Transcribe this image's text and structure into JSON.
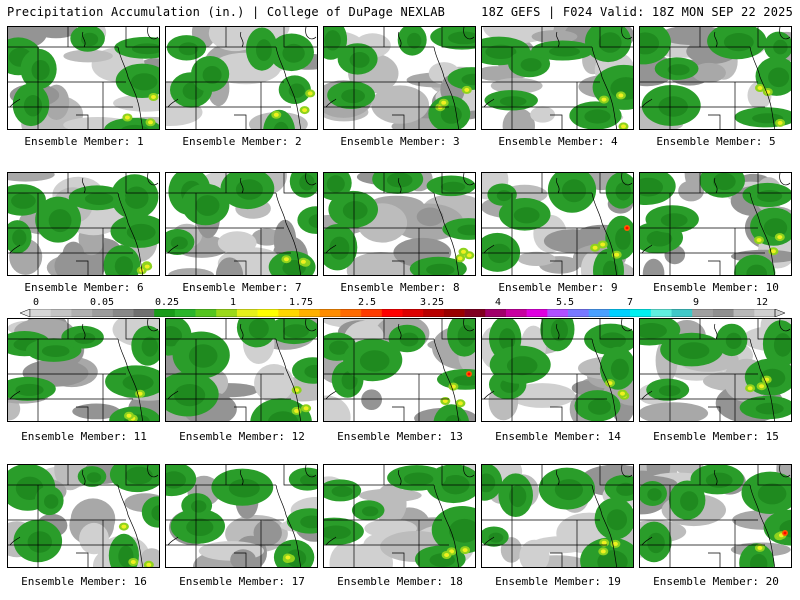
{
  "header": {
    "title_left": "Precipitation Accumulation (in.) | College of DuPage NEXLAB",
    "title_right": "18Z GEFS | F024 Valid: 18Z MON SEP 22 2025"
  },
  "colorbar": {
    "tick_labels": [
      "0",
      "0.05",
      "0.25",
      "1",
      "1.75",
      "2.5",
      "3.25",
      "4",
      "5.5",
      "7",
      "9",
      "12"
    ],
    "colors": [
      "#d6d6d6",
      "#c4c4c4",
      "#b0b0b0",
      "#9c9c9c",
      "#888888",
      "#707070",
      "#1a9c1a",
      "#2bb52b",
      "#55c520",
      "#9bd91a",
      "#e6f01a",
      "#ffff00",
      "#ffd700",
      "#ffb000",
      "#ff8c00",
      "#ff6a00",
      "#ff3c00",
      "#ff0000",
      "#dd0000",
      "#b80000",
      "#990000",
      "#800020",
      "#a0006a",
      "#c800a0",
      "#e000e0",
      "#b050ff",
      "#7878ff",
      "#4aa0ff",
      "#00d0ff",
      "#00f0f0",
      "#60f0e0",
      "#40c8c8",
      "#a0a0a0",
      "#909090",
      "#b8b8b8",
      "#d0d0d0"
    ]
  },
  "members": [
    {
      "label": "Ensemble Member: 1"
    },
    {
      "label": "Ensemble Member: 2"
    },
    {
      "label": "Ensemble Member: 3"
    },
    {
      "label": "Ensemble Member: 4"
    },
    {
      "label": "Ensemble Member: 5"
    },
    {
      "label": "Ensemble Member: 6"
    },
    {
      "label": "Ensemble Member: 7"
    },
    {
      "label": "Ensemble Member: 8"
    },
    {
      "label": "Ensemble Member: 9"
    },
    {
      "label": "Ensemble Member: 10"
    },
    {
      "label": "Ensemble Member: 11"
    },
    {
      "label": "Ensemble Member: 12"
    },
    {
      "label": "Ensemble Member: 13"
    },
    {
      "label": "Ensemble Member: 14"
    },
    {
      "label": "Ensemble Member: 15"
    },
    {
      "label": "Ensemble Member: 16"
    },
    {
      "label": "Ensemble Member: 17"
    },
    {
      "label": "Ensemble Member: 18"
    },
    {
      "label": "Ensemble Member: 19"
    },
    {
      "label": "Ensemble Member: 20"
    }
  ]
}
